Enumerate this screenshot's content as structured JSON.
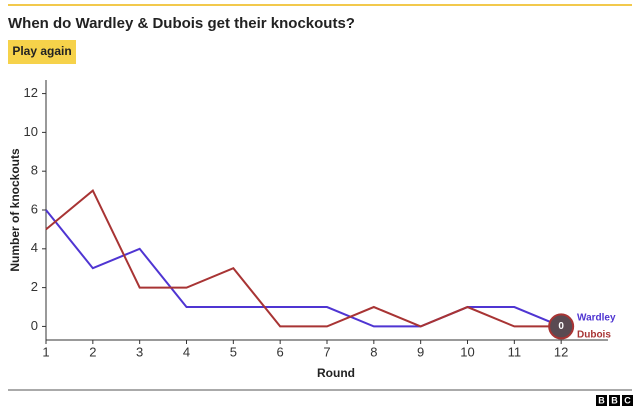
{
  "chart_data": {
    "type": "line",
    "title": "When do Wardley & Dubois get their knockouts?",
    "button": "Play again",
    "x_label": "Round",
    "y_label": "Number of knockouts",
    "x": [
      1,
      2,
      3,
      4,
      5,
      6,
      7,
      8,
      9,
      10,
      11,
      12
    ],
    "series": [
      {
        "name": "Wardley",
        "color": "#4f35d2",
        "values": [
          6,
          3,
          4,
          1,
          1,
          1,
          1,
          0,
          0,
          1,
          1,
          0
        ]
      },
      {
        "name": "Dubois",
        "color": "#a83434",
        "values": [
          5,
          7,
          2,
          2,
          3,
          0,
          0,
          1,
          0,
          1,
          0,
          0
        ]
      }
    ],
    "end_marker_label": "0",
    "xlim": [
      1,
      13
    ],
    "xticks": [
      1,
      2,
      3,
      4,
      5,
      6,
      7,
      8,
      9,
      10,
      11,
      12
    ],
    "ylim": [
      -0.7,
      12.7
    ],
    "yticks": [
      0,
      2,
      4,
      6,
      8,
      10,
      12
    ],
    "grid": false
  },
  "footer": {
    "logo": [
      "B",
      "B",
      "C"
    ]
  }
}
